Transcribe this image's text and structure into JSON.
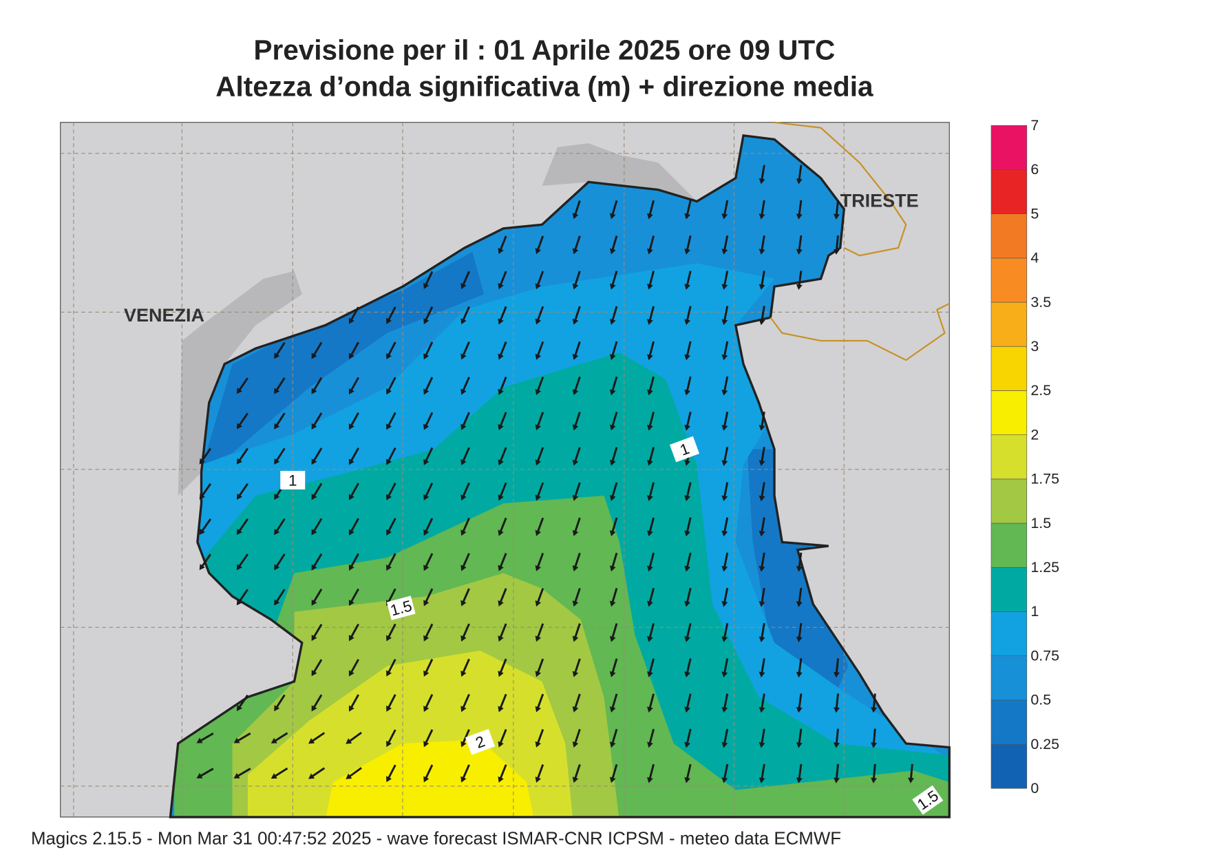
{
  "header": {
    "title": [
      "Previsione per il  :  01   Aprile  2025   ore 09 UTC",
      "Altezza d’onda significativa (m) + direzione media"
    ]
  },
  "colorbar": {
    "labels": [
      "0",
      "0.25",
      "0.5",
      "0.75",
      "1",
      "1.25",
      "1.5",
      "1.75",
      "2",
      "2.5",
      "3",
      "3.5",
      "4",
      "5",
      "6",
      "7"
    ],
    "colors": [
      "#1262b4",
      "#1478c6",
      "#1890d8",
      "#12a2e2",
      "#00aaa2",
      "#62b852",
      "#a2c844",
      "#d6e02c",
      "#f8ee00",
      "#f8d400",
      "#f8ae18",
      "#f88c22",
      "#f27a22",
      "#e82424",
      "#ea1262"
    ]
  },
  "map": {
    "places": [
      "VENEZIA",
      "TRIESTE"
    ],
    "contour_labels": [
      "1",
      "1",
      "1.5",
      "2",
      "1.5"
    ]
  },
  "footer": {
    "text": "Magics 2.15.5 - Mon Mar 31 00:47:52 2025 - wave forecast  ISMAR-CNR  ICPSM - meteo data   ECMWF"
  }
}
